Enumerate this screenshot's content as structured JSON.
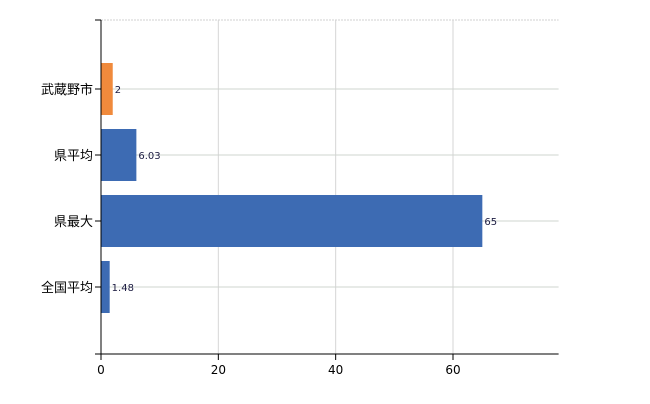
{
  "chart_data": {
    "type": "bar",
    "orientation": "horizontal",
    "categories": [
      "武蔵野市",
      "県平均",
      "県最大",
      "全国平均"
    ],
    "values": [
      2,
      6.03,
      65,
      1.48
    ],
    "data_labels": [
      "2",
      "6.03",
      "65",
      "1.48"
    ],
    "bar_colors": [
      "#f08a3c",
      "#3d6bb3",
      "#3d6bb3",
      "#3d6bb3"
    ],
    "xlim": [
      0,
      78
    ],
    "xticks": [
      0,
      20,
      40,
      60
    ],
    "xtick_labels": [
      "0",
      "20",
      "40",
      "60"
    ],
    "grid": true,
    "title": "",
    "xlabel": "",
    "ylabel": ""
  }
}
